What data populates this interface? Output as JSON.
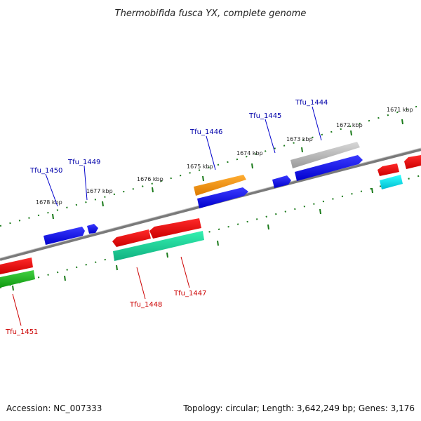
{
  "title": "Thermobifida fusca YX, complete genome",
  "accession": "Accession: NC_007333",
  "topology": "Topology: circular; Length: 3,642,249 bp; Genes: 3,176",
  "colors": {
    "backbone": "#888888",
    "tick": "#1a7a1a",
    "top_label": "#0000aa",
    "bottom_label": "#cc0000"
  },
  "kbp_labels": [
    "1671 kbp",
    "1672 kbp",
    "1673 kbp",
    "1674 kbp",
    "1675 kbp",
    "1676 kbp",
    "1677 kbp",
    "1678 kbp"
  ],
  "top_genes": [
    "Tfu_1444",
    "Tfu_1445",
    "Tfu_1446",
    "Tfu_1449",
    "Tfu_1450"
  ],
  "bottom_genes": [
    "Tfu_1447",
    "Tfu_1448",
    "Tfu_1451"
  ]
}
